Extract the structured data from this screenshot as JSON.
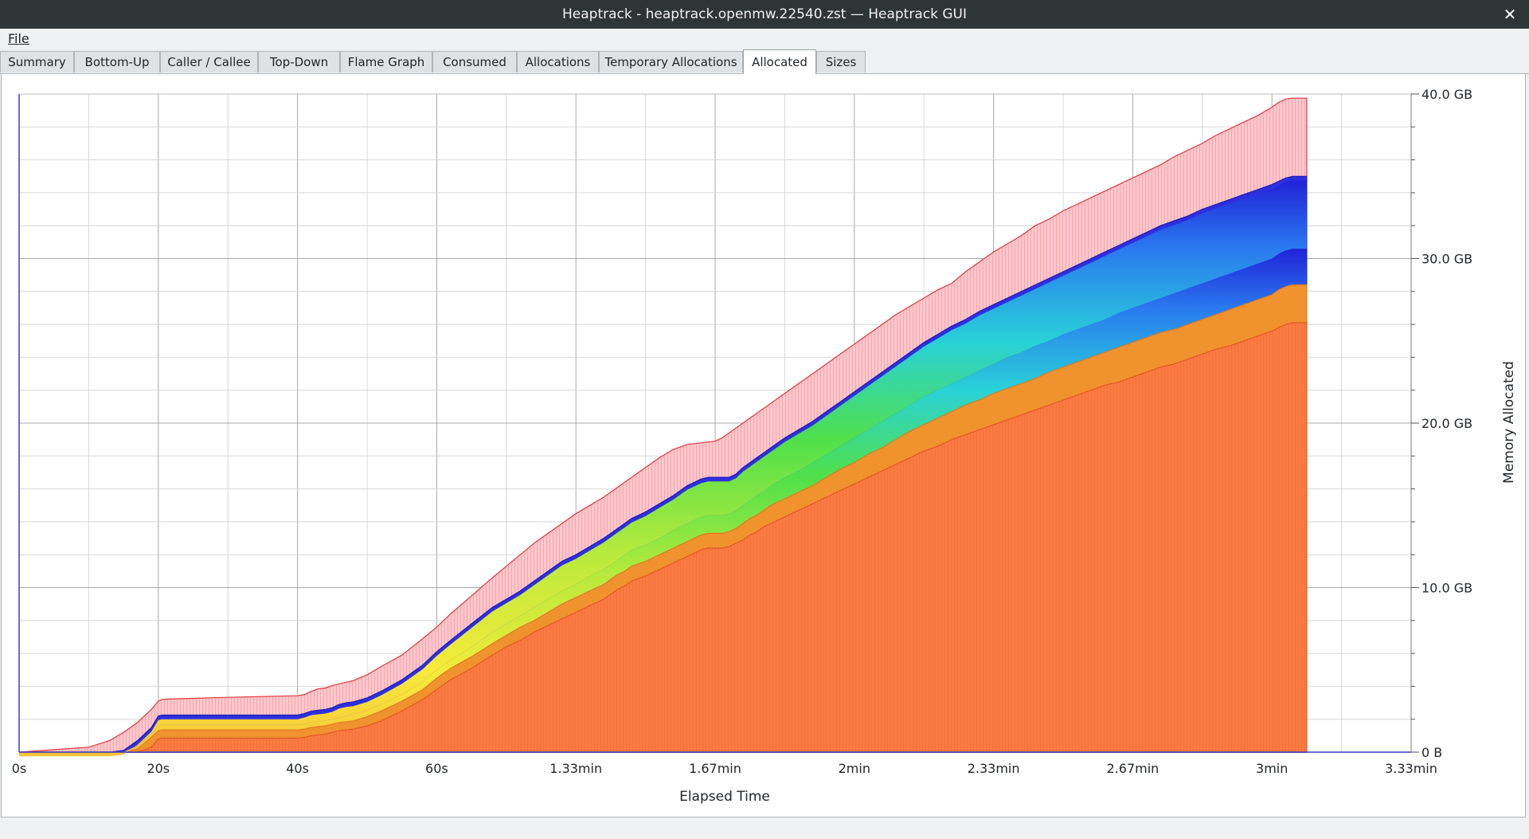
{
  "window": {
    "title": "Heaptrack - heaptrack.openmw.22540.zst — Heaptrack GUI",
    "close_icon": "close-icon ✕"
  },
  "menu": {
    "file_label": "File"
  },
  "tabs": [
    {
      "label": "Summary",
      "name": "tab-summary"
    },
    {
      "label": "Bottom-Up",
      "name": "tab-bottom-up"
    },
    {
      "label": "Caller / Callee",
      "name": "tab-caller-callee"
    },
    {
      "label": "Top-Down",
      "name": "tab-top-down"
    },
    {
      "label": "Flame Graph",
      "name": "tab-flame-graph"
    },
    {
      "label": "Consumed",
      "name": "tab-consumed"
    },
    {
      "label": "Allocations",
      "name": "tab-allocations"
    },
    {
      "label": "Temporary Allocations",
      "name": "tab-temporary-allocations"
    },
    {
      "label": "Allocated",
      "name": "tab-allocated",
      "active": true
    },
    {
      "label": "Sizes",
      "name": "tab-sizes"
    }
  ],
  "chart_data": {
    "type": "area",
    "title": "",
    "xlabel": "Elapsed Time",
    "ylabel": "Memory Allocated",
    "xlim": [
      0,
      200
    ],
    "ylim": [
      0,
      40
    ],
    "x_ticks": [
      {
        "value": 0,
        "label": "0s"
      },
      {
        "value": 20,
        "label": "20s"
      },
      {
        "value": 40,
        "label": "40s"
      },
      {
        "value": 60,
        "label": "60s"
      },
      {
        "value": 80,
        "label": "1.33min"
      },
      {
        "value": 100,
        "label": "1.67min"
      },
      {
        "value": 120,
        "label": "2min"
      },
      {
        "value": 140,
        "label": "2.33min"
      },
      {
        "value": 160,
        "label": "2.67min"
      },
      {
        "value": 180,
        "label": "3min"
      },
      {
        "value": 200,
        "label": "3.33min"
      }
    ],
    "y_ticks": [
      {
        "value": 0,
        "label": "0 B"
      },
      {
        "value": 10,
        "label": "10.0 GB"
      },
      {
        "value": 20,
        "label": "20.0 GB"
      },
      {
        "value": 30,
        "label": "30.0 GB"
      },
      {
        "value": 40,
        "label": "40.0 GB"
      }
    ],
    "grid": true,
    "y_axis_position": "right",
    "x": [
      0,
      5,
      10,
      13,
      15,
      17,
      19,
      20,
      20.5,
      21,
      25,
      30,
      35,
      40,
      41,
      42,
      43,
      44,
      45,
      46,
      47,
      48,
      50,
      52,
      55,
      58,
      60,
      62,
      65,
      68,
      70,
      72,
      74,
      76,
      78,
      80,
      82,
      84,
      85,
      86,
      87,
      88,
      90,
      92,
      94,
      96,
      98,
      99,
      100,
      101,
      102,
      103,
      104,
      105,
      106,
      107,
      108,
      110,
      112,
      114,
      116,
      118,
      120,
      122,
      124,
      126,
      128,
      130,
      132,
      134,
      136,
      138,
      140,
      142,
      144,
      146,
      148,
      150,
      152,
      154,
      156,
      158,
      160,
      162,
      164,
      166,
      168,
      170,
      172,
      174,
      176,
      178,
      180,
      181,
      182,
      183,
      184,
      185
    ],
    "series": [
      {
        "name": "total",
        "color": "#f9b3b8",
        "values": [
          0,
          0.15,
          0.3,
          0.7,
          1.2,
          1.8,
          2.6,
          3.1,
          3.2,
          3.22,
          3.27,
          3.33,
          3.38,
          3.43,
          3.5,
          3.7,
          3.85,
          3.9,
          4.05,
          4.15,
          4.25,
          4.35,
          4.7,
          5.2,
          5.9,
          6.9,
          7.6,
          8.4,
          9.5,
          10.6,
          11.3,
          12,
          12.7,
          13.3,
          13.9,
          14.5,
          15,
          15.5,
          15.8,
          16.1,
          16.4,
          16.7,
          17.3,
          17.9,
          18.4,
          18.7,
          18.8,
          18.85,
          18.9,
          19.1,
          19.4,
          19.7,
          20,
          20.3,
          20.6,
          20.9,
          21.2,
          21.8,
          22.4,
          23,
          23.6,
          24.2,
          24.8,
          25.4,
          26,
          26.6,
          27.1,
          27.6,
          28.1,
          28.5,
          29.2,
          29.8,
          30.4,
          30.9,
          31.4,
          32,
          32.4,
          32.9,
          33.3,
          33.7,
          34.1,
          34.5,
          34.9,
          35.3,
          35.7,
          36.2,
          36.6,
          37,
          37.5,
          37.9,
          38.3,
          38.7,
          39.2,
          39.5,
          39.7,
          39.75,
          39.75,
          39.75
        ]
      },
      {
        "name": "blue",
        "color": "#2f2fe0",
        "values": [
          0,
          0,
          0,
          0,
          0.1,
          0.7,
          1.5,
          2.2,
          2.25,
          2.25,
          2.25,
          2.25,
          2.25,
          2.25,
          2.35,
          2.5,
          2.55,
          2.6,
          2.7,
          2.9,
          3,
          3.05,
          3.3,
          3.7,
          4.4,
          5.3,
          6.1,
          6.8,
          7.8,
          8.8,
          9.3,
          9.8,
          10.4,
          11,
          11.6,
          12,
          12.5,
          13,
          13.3,
          13.6,
          13.9,
          14.2,
          14.6,
          15.1,
          15.6,
          16.2,
          16.6,
          16.7,
          16.7,
          16.7,
          16.7,
          16.9,
          17.3,
          17.6,
          17.9,
          18.2,
          18.5,
          19.1,
          19.6,
          20.1,
          20.7,
          21.3,
          21.9,
          22.5,
          23.1,
          23.7,
          24.3,
          24.9,
          25.4,
          25.9,
          26.3,
          26.8,
          27.2,
          27.6,
          28,
          28.4,
          28.8,
          29.2,
          29.6,
          30,
          30.4,
          30.8,
          31.2,
          31.6,
          32,
          32.3,
          32.6,
          33,
          33.3,
          33.6,
          33.9,
          34.2,
          34.5,
          34.7,
          34.9,
          35,
          35,
          35
        ]
      },
      {
        "name": "yellow",
        "color": "#f5ea3a",
        "values": [
          0,
          0,
          0,
          0,
          0,
          0.4,
          1.1,
          1.6,
          1.65,
          1.65,
          1.65,
          1.65,
          1.65,
          1.65,
          1.7,
          1.8,
          1.85,
          1.9,
          2,
          2.1,
          2.2,
          2.3,
          2.55,
          2.9,
          3.5,
          4.3,
          5,
          5.6,
          6.4,
          7.3,
          7.8,
          8.3,
          8.8,
          9.3,
          9.8,
          10.2,
          10.7,
          11.1,
          11.4,
          11.7,
          12,
          12.3,
          12.6,
          13,
          13.5,
          13.9,
          14.3,
          14.4,
          14.4,
          14.4,
          14.5,
          14.7,
          15,
          15.3,
          15.6,
          15.9,
          16.2,
          16.7,
          17.1,
          17.6,
          18.1,
          18.6,
          19.1,
          19.6,
          20.1,
          20.6,
          21.1,
          21.6,
          22,
          22.4,
          22.8,
          23.2,
          23.6,
          24,
          24.3,
          24.7,
          25,
          25.4,
          25.7,
          26,
          26.3,
          26.7,
          27,
          27.3,
          27.6,
          27.9,
          28.2,
          28.5,
          28.8,
          29.1,
          29.4,
          29.7,
          30,
          30.3,
          30.5,
          30.6,
          30.6,
          30.6
        ]
      },
      {
        "name": "orange",
        "color": "#f0922e",
        "values": [
          0,
          0,
          0,
          0,
          0,
          0.2,
          0.9,
          1.3,
          1.35,
          1.35,
          1.35,
          1.35,
          1.35,
          1.35,
          1.4,
          1.5,
          1.55,
          1.6,
          1.7,
          1.8,
          1.85,
          1.9,
          2.15,
          2.5,
          3.1,
          3.8,
          4.5,
          5.1,
          5.8,
          6.6,
          7.1,
          7.6,
          8,
          8.5,
          9,
          9.4,
          9.8,
          10.2,
          10.5,
          10.8,
          11,
          11.3,
          11.6,
          12,
          12.4,
          12.8,
          13.2,
          13.3,
          13.3,
          13.3,
          13.4,
          13.6,
          13.9,
          14.2,
          14.4,
          14.7,
          15,
          15.4,
          15.8,
          16.2,
          16.7,
          17.2,
          17.6,
          18.1,
          18.5,
          19,
          19.5,
          19.9,
          20.3,
          20.7,
          21.1,
          21.4,
          21.8,
          22.1,
          22.4,
          22.7,
          23.1,
          23.4,
          23.7,
          24,
          24.3,
          24.6,
          24.9,
          25.2,
          25.5,
          25.7,
          26,
          26.3,
          26.6,
          26.9,
          27.2,
          27.5,
          27.8,
          28.1,
          28.3,
          28.4,
          28.4,
          28.4
        ]
      },
      {
        "name": "base",
        "color": "#fb7a42",
        "values": [
          0,
          0,
          0,
          0,
          0,
          0,
          0.3,
          0.8,
          0.85,
          0.85,
          0.85,
          0.85,
          0.85,
          0.85,
          0.9,
          1,
          1.05,
          1.1,
          1.2,
          1.3,
          1.35,
          1.4,
          1.6,
          1.9,
          2.5,
          3.2,
          3.8,
          4.4,
          5.1,
          5.9,
          6.4,
          6.8,
          7.3,
          7.7,
          8.1,
          8.5,
          8.9,
          9.3,
          9.6,
          9.9,
          10.1,
          10.4,
          10.7,
          11.1,
          11.5,
          11.9,
          12.3,
          12.4,
          12.4,
          12.4,
          12.5,
          12.7,
          12.9,
          13.2,
          13.4,
          13.7,
          13.9,
          14.3,
          14.7,
          15.1,
          15.5,
          15.9,
          16.3,
          16.7,
          17.1,
          17.5,
          17.9,
          18.3,
          18.6,
          19,
          19.3,
          19.6,
          19.9,
          20.2,
          20.5,
          20.8,
          21.1,
          21.4,
          21.7,
          22,
          22.3,
          22.5,
          22.8,
          23.1,
          23.4,
          23.6,
          23.9,
          24.2,
          24.5,
          24.7,
          25,
          25.3,
          25.6,
          25.8,
          26,
          26.1,
          26.1,
          26.1
        ]
      }
    ]
  }
}
